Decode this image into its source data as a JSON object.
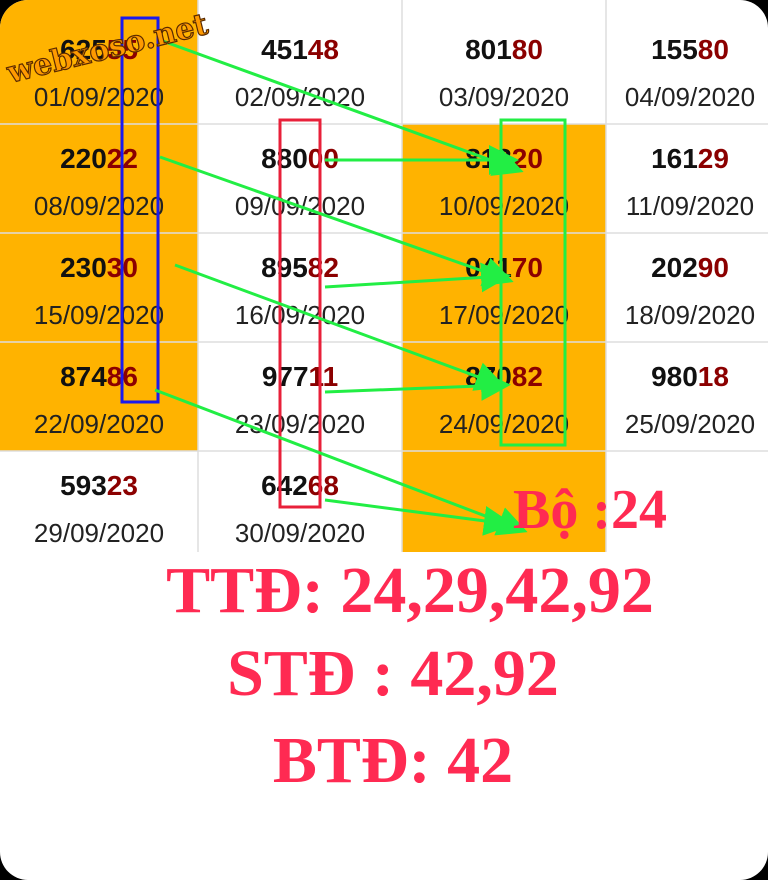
{
  "watermark": "webxoso.net",
  "table": {
    "rows": [
      [
        {
          "head": "625",
          "tail": "55",
          "date": "01/09/2020"
        },
        {
          "head": "451",
          "tail": "48",
          "date": "02/09/2020"
        },
        {
          "head": "801",
          "tail": "80",
          "date": "03/09/2020"
        },
        {
          "head": "155",
          "tail": "80",
          "date": "04/09/2020"
        }
      ],
      [
        {
          "head": "220",
          "tail": "22",
          "date": "08/09/2020"
        },
        {
          "head": "880",
          "tail": "00",
          "date": "09/09/2020"
        },
        {
          "head": "813",
          "tail": "20",
          "date": "10/09/2020"
        },
        {
          "head": "161",
          "tail": "29",
          "date": "11/09/2020"
        }
      ],
      [
        {
          "head": "230",
          "tail": "30",
          "date": "15/09/2020"
        },
        {
          "head": "895",
          "tail": "82",
          "date": "16/09/2020"
        },
        {
          "head": "041",
          "tail": "70",
          "date": "17/09/2020"
        },
        {
          "head": "202",
          "tail": "90",
          "date": "18/09/2020"
        }
      ],
      [
        {
          "head": "874",
          "tail": "86",
          "date": "22/09/2020"
        },
        {
          "head": "977",
          "tail": "11",
          "date": "23/09/2020"
        },
        {
          "head": "870",
          "tail": "82",
          "date": "24/09/2020"
        },
        {
          "head": "980",
          "tail": "18",
          "date": "25/09/2020"
        }
      ],
      [
        {
          "head": "593",
          "tail": "23",
          "date": "29/09/2020"
        },
        {
          "head": "642",
          "tail": "68",
          "date": "30/09/2020"
        },
        null,
        null
      ]
    ]
  },
  "result": {
    "bo": "Bộ :24",
    "ttd": "TTĐ: 24,29,42,92",
    "std": "STĐ : 42,92",
    "btd": "BTĐ: 42"
  }
}
